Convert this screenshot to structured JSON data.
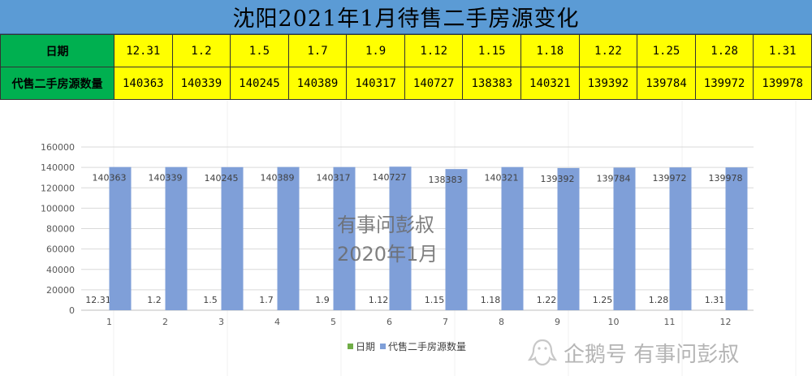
{
  "title": "沈阳2021年1月待售二手房源变化",
  "table": {
    "date_header": "日期",
    "count_header": "代售二手房源数量",
    "dates": [
      "12.31",
      "1.2",
      "1.5",
      "1.7",
      "1.9",
      "1.12",
      "1.15",
      "1.18",
      "1.22",
      "1.25",
      "1.28",
      "1.31"
    ],
    "counts": [
      "140363",
      "140339",
      "140245",
      "140389",
      "140317",
      "140727",
      "138383",
      "140321",
      "139392",
      "139784",
      "139972",
      "139978"
    ]
  },
  "watermark": {
    "line1": "有事问彭叔",
    "line2": "2020年1月"
  },
  "brand": {
    "text": "企鹅号 有事问彭叔"
  },
  "colors": {
    "title_bg": "#5b9bd5",
    "header_bg": "#00b050",
    "cell_bg": "#ffff00",
    "bar_blue": "#7f9fd8",
    "series1_green": "#70ad47"
  },
  "chart_data": {
    "type": "bar",
    "categories": [
      "1",
      "2",
      "3",
      "4",
      "5",
      "6",
      "7",
      "8",
      "9",
      "10",
      "11",
      "12"
    ],
    "series": [
      {
        "name": "日期",
        "values": [
          12.31,
          1.2,
          1.5,
          1.7,
          1.9,
          1.12,
          1.15,
          1.18,
          1.22,
          1.25,
          1.28,
          1.31
        ],
        "labels": [
          "12.31",
          "1.2",
          "1.5",
          "1.7",
          "1.9",
          "1.12",
          "1.15",
          "1.18",
          "1.22",
          "1.25",
          "1.28",
          "1.31"
        ]
      },
      {
        "name": "代售二手房源数量",
        "values": [
          140363,
          140339,
          140245,
          140389,
          140317,
          140727,
          138383,
          140321,
          139392,
          139784,
          139972,
          139978
        ]
      }
    ],
    "ylim": [
      0,
      160000
    ],
    "yticks": [
      0,
      20000,
      40000,
      60000,
      80000,
      100000,
      120000,
      140000,
      160000
    ],
    "grid": true,
    "legend": "bottom"
  }
}
